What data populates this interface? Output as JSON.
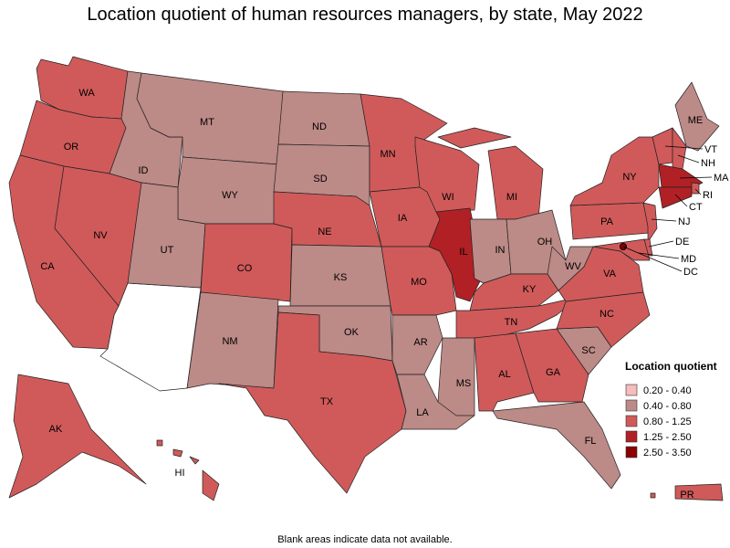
{
  "title": "Location quotient of human resources managers, by state, May 2022",
  "states": [
    {
      "label": "WA",
      "color": "#d05a5a"
    },
    {
      "label": "OR",
      "color": "#d05a5a"
    },
    {
      "label": "CA",
      "color": "#d05a5a"
    },
    {
      "label": "NV",
      "color": "#d05a5a"
    },
    {
      "label": "ID",
      "color": "#bc8a87"
    },
    {
      "label": "MT",
      "color": "#bc8a87"
    },
    {
      "label": "WY",
      "color": "#bc8a87"
    },
    {
      "label": "UT",
      "color": "#bc8a87"
    },
    {
      "label": "CO",
      "color": "#d05a5a"
    },
    {
      "label": "NM",
      "color": "#bc8a87"
    },
    {
      "label": "ND",
      "color": "#bc8a87"
    },
    {
      "label": "SD",
      "color": "#bc8a87"
    },
    {
      "label": "NE",
      "color": "#d05a5a"
    },
    {
      "label": "KS",
      "color": "#bc8a87"
    },
    {
      "label": "OK",
      "color": "#bc8a87"
    },
    {
      "label": "TX",
      "color": "#d05a5a"
    },
    {
      "label": "MN",
      "color": "#d05a5a"
    },
    {
      "label": "IA",
      "color": "#d05a5a"
    },
    {
      "label": "MO",
      "color": "#d05a5a"
    },
    {
      "label": "AR",
      "color": "#bc8a87"
    },
    {
      "label": "LA",
      "color": "#bc8a87"
    },
    {
      "label": "WI",
      "color": "#d05a5a"
    },
    {
      "label": "IL",
      "color": "#b02024"
    },
    {
      "label": "MI",
      "color": "#d05a5a"
    },
    {
      "label": "IN",
      "color": "#bc8a87"
    },
    {
      "label": "OH",
      "color": "#bc8a87"
    },
    {
      "label": "KY",
      "color": "#d05a5a"
    },
    {
      "label": "TN",
      "color": "#d05a5a"
    },
    {
      "label": "MS",
      "color": "#bc8a87"
    },
    {
      "label": "AL",
      "color": "#d05a5a"
    },
    {
      "label": "GA",
      "color": "#d05a5a"
    },
    {
      "label": "FL",
      "color": "#bc8a87"
    },
    {
      "label": "SC",
      "color": "#bc8a87"
    },
    {
      "label": "NC",
      "color": "#d05a5a"
    },
    {
      "label": "VA",
      "color": "#d05a5a"
    },
    {
      "label": "WV",
      "color": "#bc8a87"
    },
    {
      "label": "PA",
      "color": "#d05a5a"
    },
    {
      "label": "NY",
      "color": "#d05a5a"
    },
    {
      "label": "ME",
      "color": "#bc8a87"
    },
    {
      "label": "VT",
      "color": "#d05a5a"
    },
    {
      "label": "NH",
      "color": "#d05a5a"
    },
    {
      "label": "MA",
      "color": "#b02024"
    },
    {
      "label": "RI",
      "color": "#d05a5a"
    },
    {
      "label": "CT",
      "color": "#b02024"
    },
    {
      "label": "NJ",
      "color": "#d05a5a"
    },
    {
      "label": "DE",
      "color": "#d05a5a"
    },
    {
      "label": "MD",
      "color": "#d05a5a"
    },
    {
      "label": "DC",
      "color": "#8b0000"
    },
    {
      "label": "AK",
      "color": "#d05a5a"
    },
    {
      "label": "HI",
      "color": "#d05a5a"
    },
    {
      "label": "PR",
      "color": "#d05a5a"
    }
  ],
  "legend": {
    "title": "Location quotient",
    "items": [
      {
        "label": "0.20 - 0.40",
        "color": "#f7bcbc"
      },
      {
        "label": "0.40 - 0.80",
        "color": "#bc8a87"
      },
      {
        "label": "0.80 - 1.25",
        "color": "#d05a5a"
      },
      {
        "label": "1.25 - 2.50",
        "color": "#b02024"
      },
      {
        "label": "2.50 - 3.50",
        "color": "#8b0000"
      }
    ]
  },
  "footnote": "Blank areas indicate data not available."
}
